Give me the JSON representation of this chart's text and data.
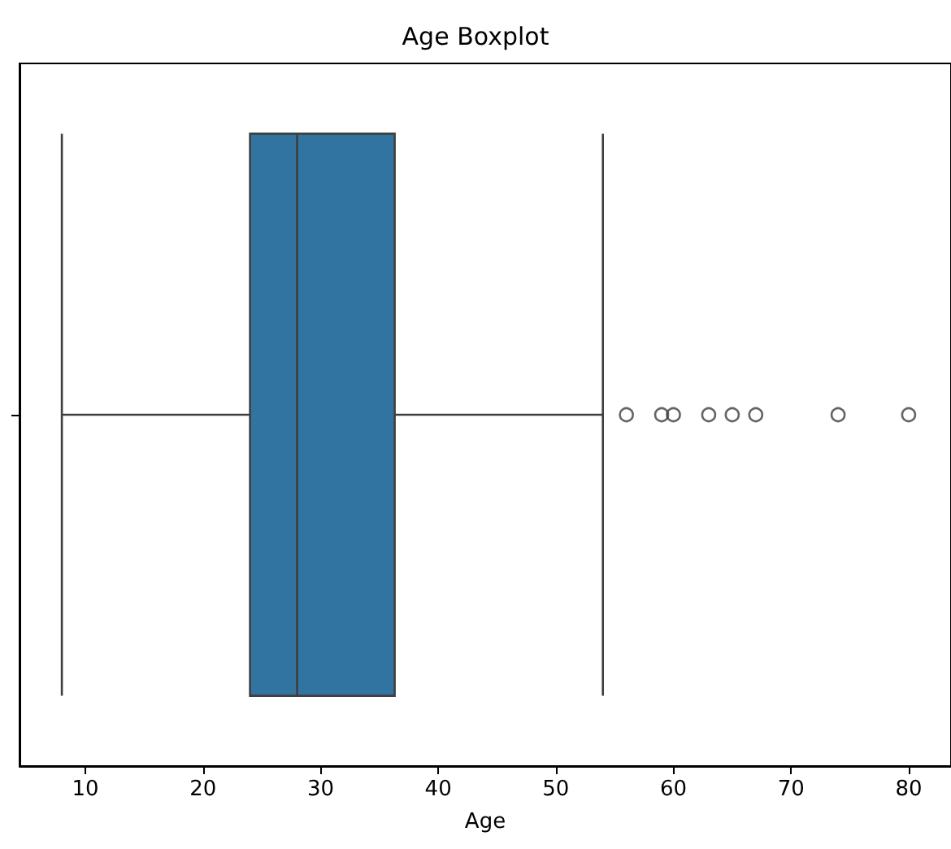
{
  "chart_data": {
    "type": "box",
    "title": "Age Boxplot",
    "xlabel": "Age",
    "orientation": "horizontal",
    "categories": [
      null
    ],
    "color": "#3274a1",
    "boxes": [
      {
        "low": 8,
        "q1": 24,
        "median": 28,
        "q3": 36.3,
        "high": 54,
        "outliers": [
          56,
          59,
          60,
          63,
          65,
          67,
          74,
          80
        ]
      }
    ],
    "xlim": [
      4.4,
      83.6
    ],
    "xticks": [
      10,
      20,
      30,
      40,
      50,
      60,
      70,
      80
    ],
    "grid": false
  }
}
